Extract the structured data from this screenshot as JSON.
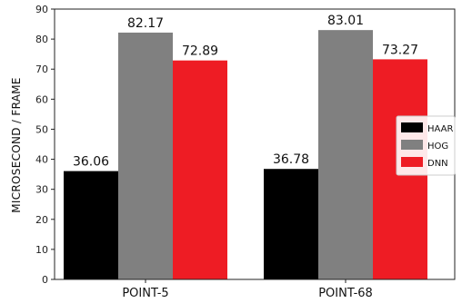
{
  "chart_data": {
    "type": "bar",
    "categories": [
      "POINT-5",
      "POINT-68"
    ],
    "series": [
      {
        "name": "HAAR",
        "values": [
          36.06,
          36.78
        ],
        "color": "#000000"
      },
      {
        "name": "HOG",
        "values": [
          82.17,
          83.01
        ],
        "color": "#808080"
      },
      {
        "name": "DNN",
        "values": [
          72.89,
          73.27
        ],
        "color": "#ee1c24"
      }
    ],
    "ylabel": "MICROSECOND / FRAME",
    "ylim": [
      0,
      90
    ],
    "yticks": [
      0,
      10,
      20,
      30,
      40,
      50,
      60,
      70,
      80,
      90
    ],
    "grid": false,
    "legend_position": "center-right",
    "data_labels": true
  }
}
